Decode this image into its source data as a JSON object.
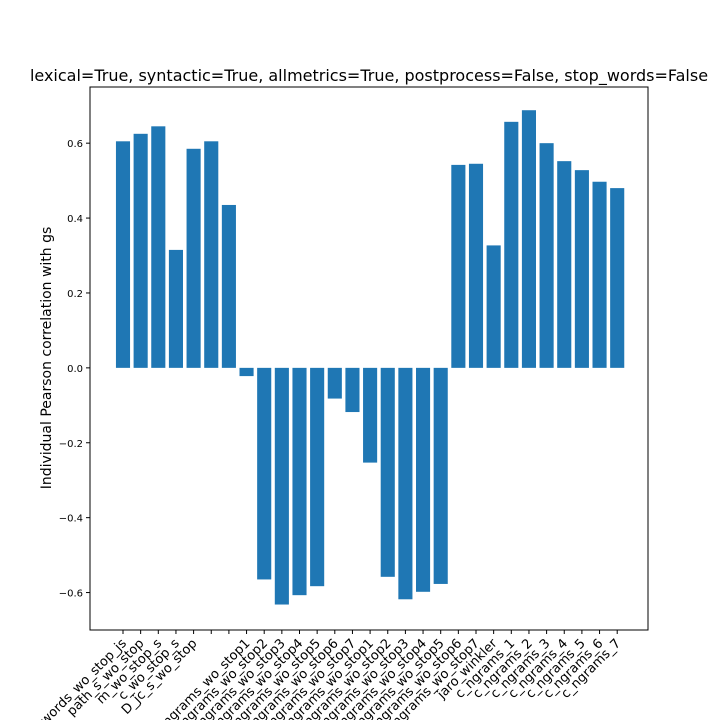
{
  "chart_data": {
    "type": "bar",
    "title": "lexical=True, syntactic=True, allmetrics=True, postprocess=False, stop_words=False",
    "xlabel": "",
    "ylabel": "Individual Pearson correlation with gs",
    "ylim": [
      -0.7,
      0.75
    ],
    "yticks": [
      -0.6,
      -0.4,
      -0.2,
      0.0,
      0.2,
      0.4,
      0.6
    ],
    "ytick_labels": [
      "−0.6",
      "−0.4",
      "−0.2",
      "0.0",
      "0.2",
      "0.4",
      "0.6"
    ],
    "grid": false,
    "bar_color": "#1f77b4",
    "categories": [
      "words_wo_stop_js",
      "path_s_wo_stop",
      "m_wo_stop_s",
      "c_wo_stop_s",
      "D_jc_s_wo_stop",
      "",
      "",
      "ngrams_wo_stop1",
      "ngrams_wo_stop2",
      "ngrams_wo_stop3",
      "ngrams_wo_stop4",
      "ngrams_wo_stop5",
      "ngrams_wo_stop6",
      "ngrams_wo_stop7",
      "ngrams_wo_stop1",
      "ngrams_wo_stop2",
      "ngrams_wo_stop3",
      "ngrams_wo_stop4",
      "ngrams_wo_stop5",
      "ngrams_wo_stop6",
      "ngrams_wo_stop7",
      "jaro_winkler",
      "c_ngrams_1",
      "c_ngrams_2",
      "c_ngrams_3",
      "c_ngrams_4",
      "c_ngrams_5",
      "c_ngrams_6",
      "c_ngrams_7"
    ],
    "values": [
      0.605,
      0.625,
      0.645,
      0.315,
      0.585,
      0.605,
      0.435,
      -0.022,
      -0.565,
      -0.632,
      -0.607,
      -0.583,
      -0.082,
      -0.118,
      -0.253,
      -0.558,
      -0.618,
      -0.598,
      -0.577,
      0.542,
      0.545,
      0.327,
      0.657,
      0.688,
      0.6,
      0.552,
      0.528,
      0.497,
      0.48
    ]
  }
}
